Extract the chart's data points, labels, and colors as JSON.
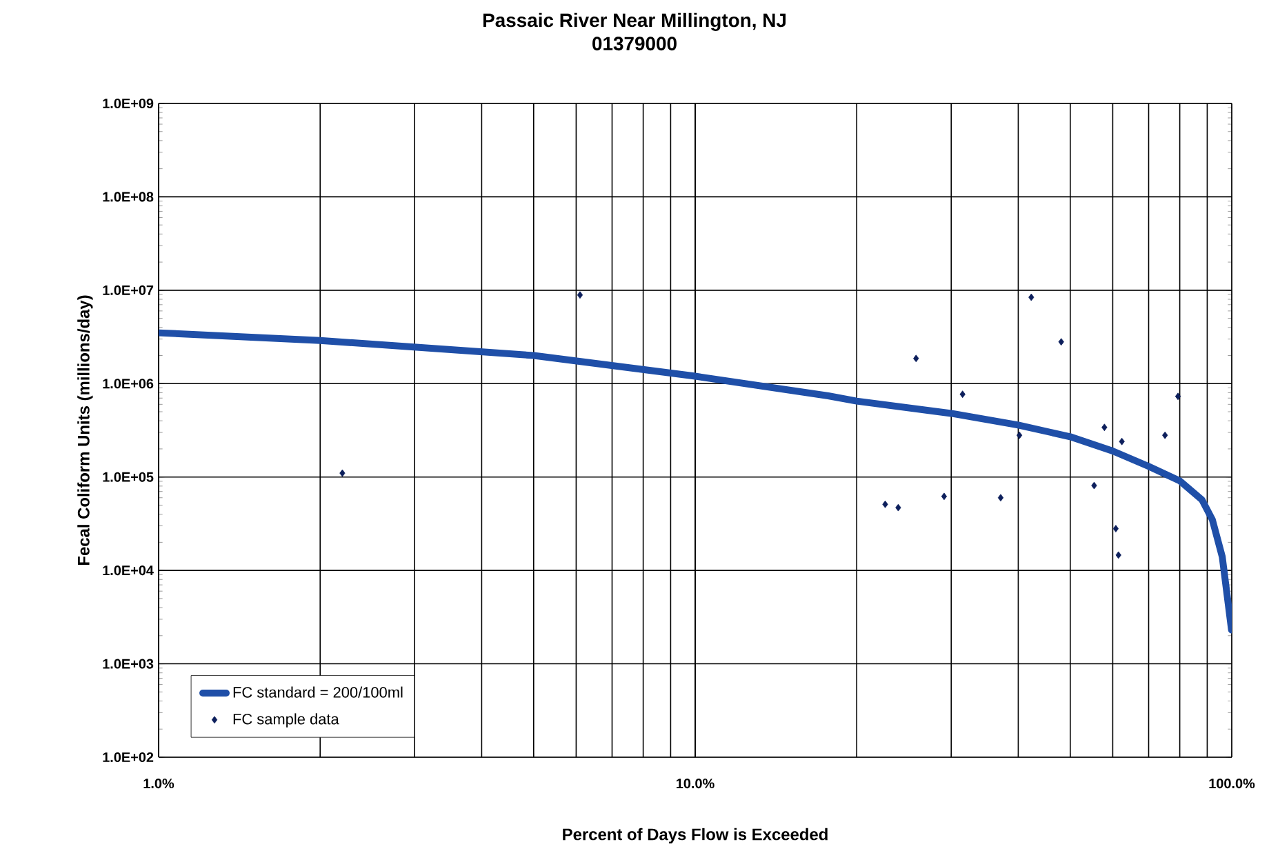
{
  "chart_data": {
    "type": "scatter",
    "title": "Passaic River Near Millington, NJ",
    "subtitle": "01379000",
    "xlabel": "Percent of Days Flow is Exceeded",
    "ylabel": "Fecal Coliform Units (millions/day)",
    "log": "xy",
    "grid": true,
    "legend": "bottom left",
    "xlim": [
      1,
      100
    ],
    "ylim": [
      100,
      1000000000
    ],
    "xticks": [
      {
        "value": 1,
        "label": "1.0%"
      },
      {
        "value": 10,
        "label": "10.0%"
      },
      {
        "value": 100,
        "label": "100.0%"
      }
    ],
    "yticks": [
      {
        "value": 100,
        "label": "1.0E+02"
      },
      {
        "value": 1000,
        "label": "1.0E+03"
      },
      {
        "value": 10000,
        "label": "1.0E+04"
      },
      {
        "value": 100000,
        "label": "1.0E+05"
      },
      {
        "value": 1000000,
        "label": "1.0E+06"
      },
      {
        "value": 10000000,
        "label": "1.0E+07"
      },
      {
        "value": 100000000,
        "label": "1.0E+08"
      },
      {
        "value": 1000000000,
        "label": "1.0E+09"
      }
    ],
    "series": [
      {
        "name": "FC standard = 200/100ml",
        "type": "line",
        "marker": "none",
        "color": "#1f4fa8",
        "x": [
          1,
          2,
          5,
          10,
          17.7,
          20,
          30,
          40,
          50,
          60,
          70,
          80,
          88,
          92,
          96,
          99.9
        ],
        "values": [
          3500000,
          2900000,
          2000000,
          1200000,
          740000,
          650000,
          480000,
          360000,
          270000,
          190000,
          130000,
          91000,
          57000,
          35000,
          14000,
          2300
        ]
      },
      {
        "name": "FC sample data",
        "marker": "diamond",
        "color": "#0d1f5c",
        "x": [
          2.2,
          6.1,
          42.3,
          48.1,
          25.8,
          31.5,
          79.4,
          57.9,
          40.2,
          62.4,
          75.1,
          55.4,
          22.6,
          23.9,
          29.1,
          37.1,
          60.8,
          61.5
        ],
        "values": [
          110000,
          8900000,
          8400000,
          2800000,
          1860000,
          770000,
          730000,
          340000,
          280000,
          240000,
          280000,
          81000,
          51000,
          47000,
          62000,
          60000,
          28000,
          14600
        ]
      }
    ]
  }
}
